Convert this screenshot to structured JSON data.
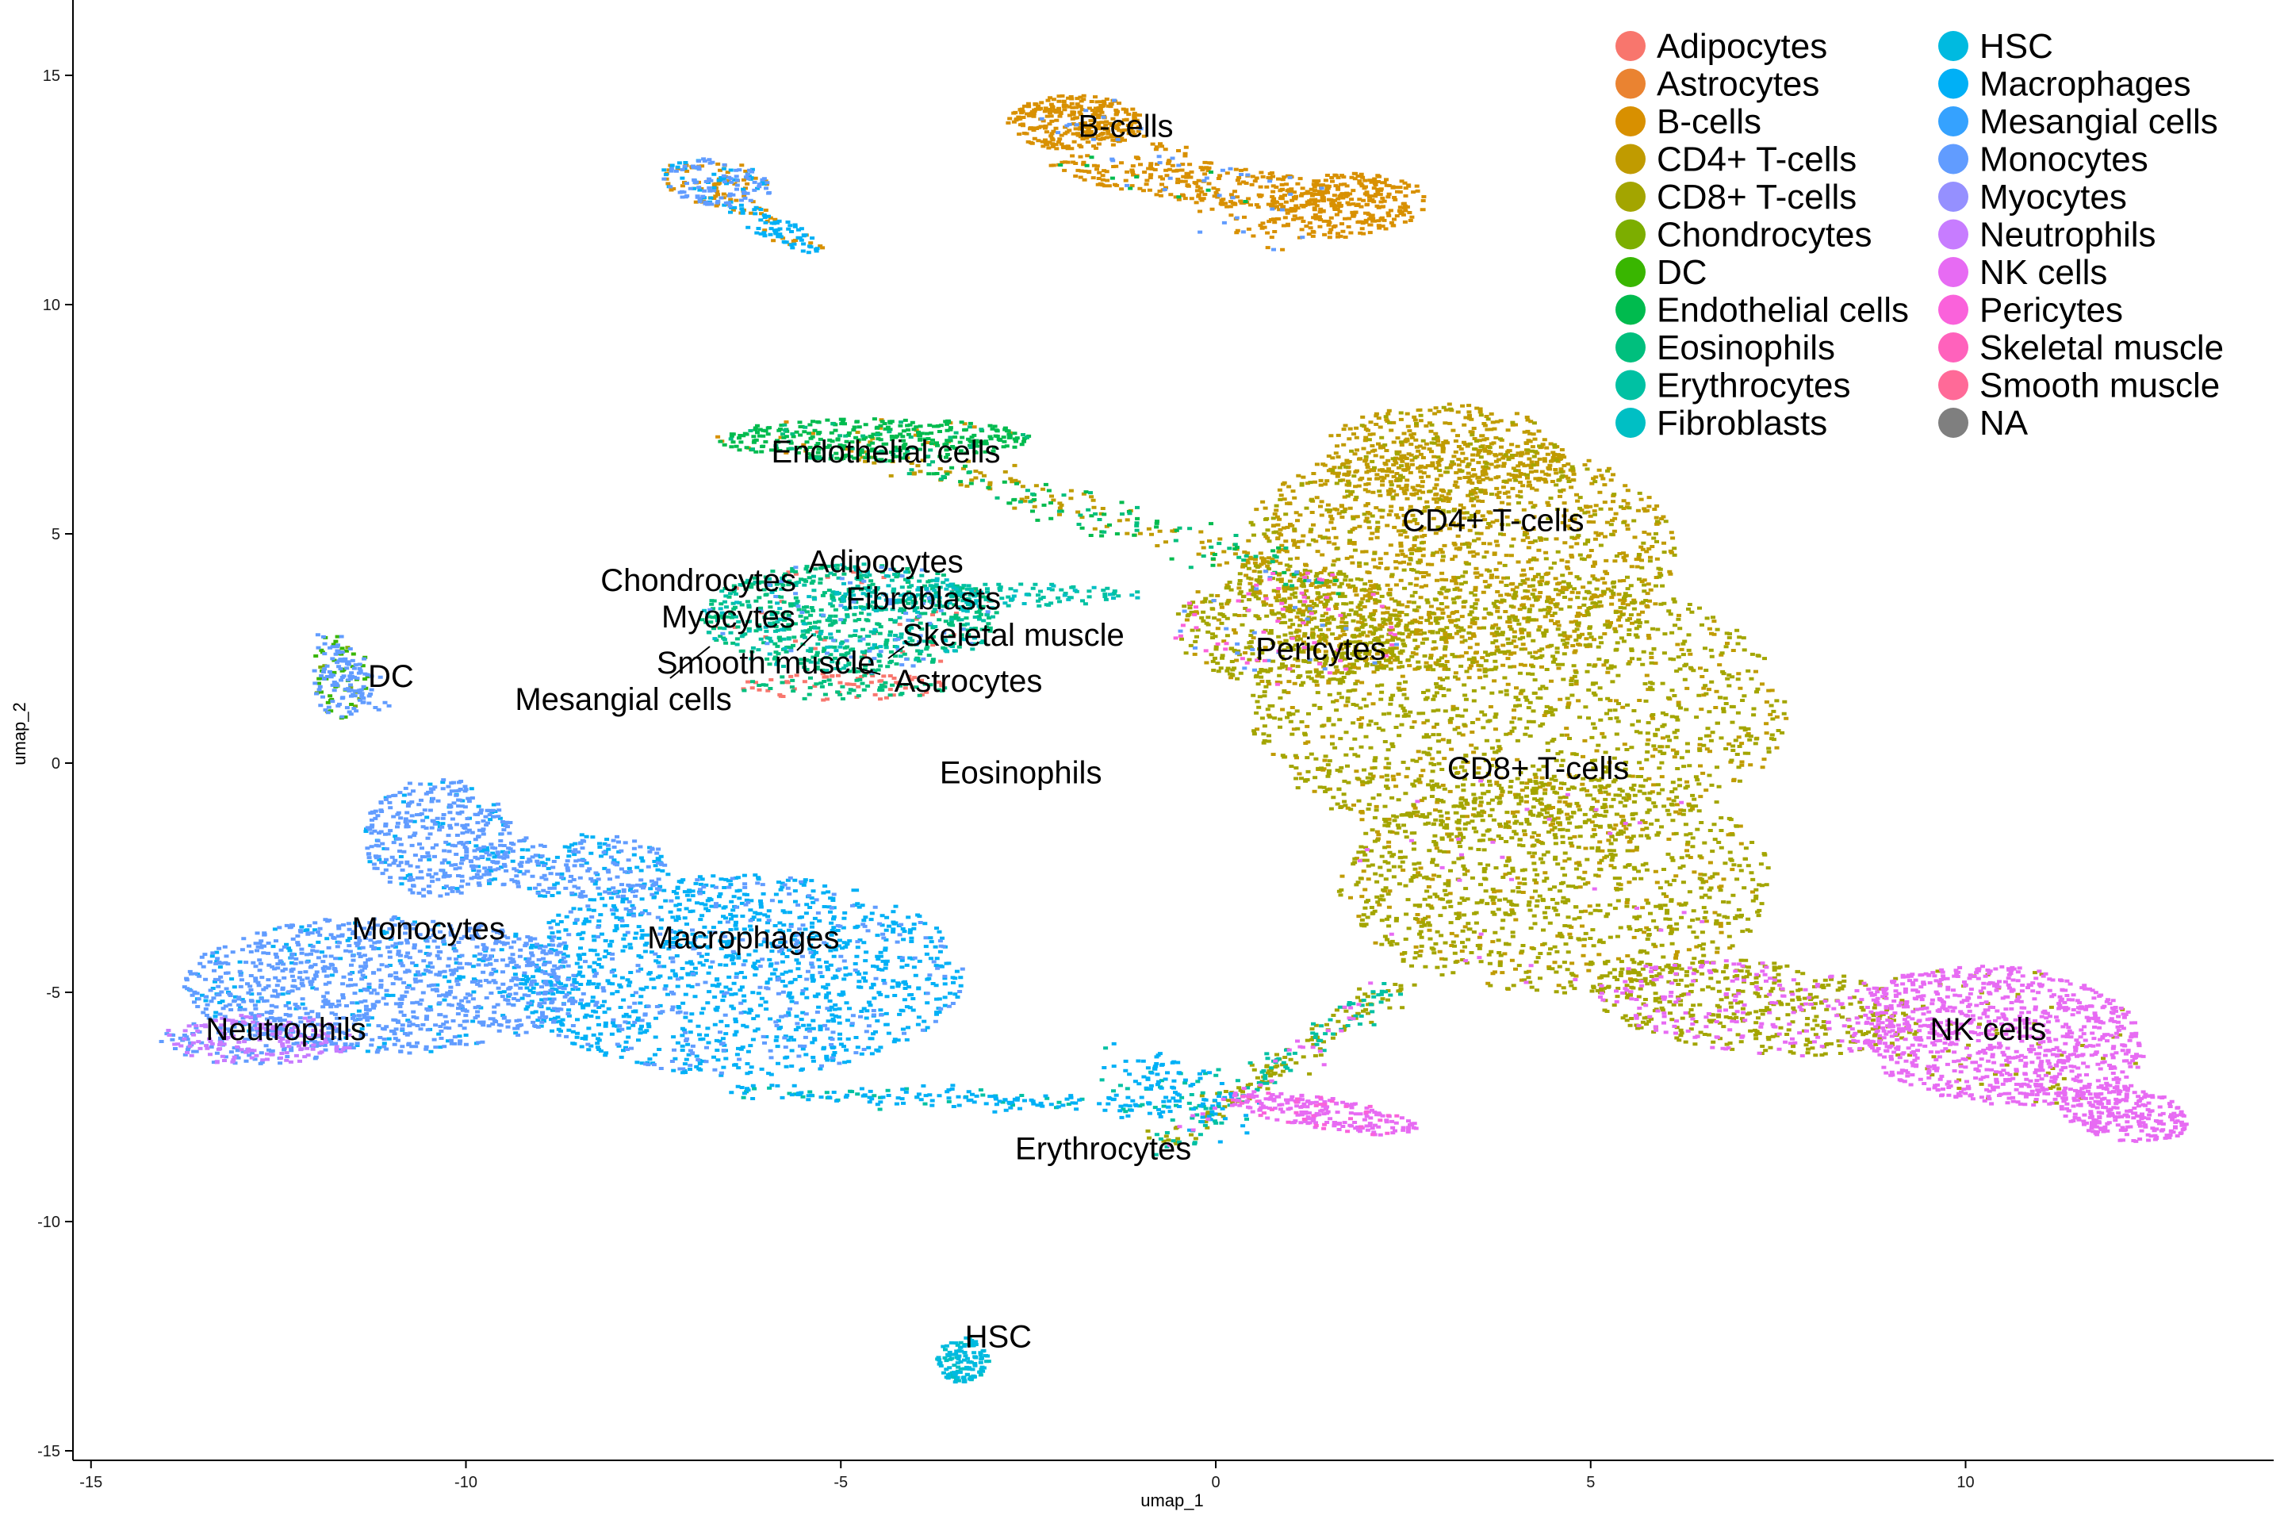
{
  "chart_data": {
    "type": "scatter",
    "xlabel": "umap_1",
    "ylabel": "umap_2",
    "xlim": [
      -15.2,
      14
    ],
    "ylim": [
      -15.2,
      16.3
    ],
    "x_ticks": [
      -15,
      -10,
      -5,
      0,
      5,
      10
    ],
    "y_ticks": [
      -15,
      -10,
      -5,
      0,
      5,
      10,
      15
    ],
    "grid": false,
    "legend_position": "top-right",
    "legend": [
      {
        "name": "Adipocytes",
        "color": "#F8766D"
      },
      {
        "name": "Astrocytes",
        "color": "#EA8331"
      },
      {
        "name": "B-cells",
        "color": "#D89000"
      },
      {
        "name": "CD4+ T-cells",
        "color": "#C09B00"
      },
      {
        "name": "CD8+ T-cells",
        "color": "#A3A500"
      },
      {
        "name": "Chondrocytes",
        "color": "#7CAE00"
      },
      {
        "name": "DC",
        "color": "#39B600"
      },
      {
        "name": "Endothelial cells",
        "color": "#00BB4E"
      },
      {
        "name": "Eosinophils",
        "color": "#00BF7D"
      },
      {
        "name": "Erythrocytes",
        "color": "#00C1A3"
      },
      {
        "name": "Fibroblasts",
        "color": "#00BFC4"
      },
      {
        "name": "HSC",
        "color": "#00BAE0"
      },
      {
        "name": "Macrophages",
        "color": "#00B0F6"
      },
      {
        "name": "Mesangial cells",
        "color": "#35A2FF"
      },
      {
        "name": "Monocytes",
        "color": "#619CFF"
      },
      {
        "name": "Myocytes",
        "color": "#9590FF"
      },
      {
        "name": "Neutrophils",
        "color": "#C77CFF"
      },
      {
        "name": "NK cells",
        "color": "#E76BF3"
      },
      {
        "name": "Pericytes",
        "color": "#FA62DB"
      },
      {
        "name": "Skeletal muscle",
        "color": "#FF62BC"
      },
      {
        "name": "Smooth muscle",
        "color": "#FF6A98"
      },
      {
        "name": "NA",
        "color": "#7F7F7F"
      }
    ],
    "cluster_labels": [
      {
        "text": "B-cells",
        "x": -1.2,
        "y": 13.9
      },
      {
        "text": "Endothelial cells",
        "x": -4.4,
        "y": 6.8
      },
      {
        "text": "CD4+ T-cells",
        "x": 3.7,
        "y": 5.3
      },
      {
        "text": "Adipocytes",
        "x": -4.4,
        "y": 4.4
      },
      {
        "text": "Chondrocytes",
        "x": -6.9,
        "y": 4.0
      },
      {
        "text": "Fibroblasts",
        "x": -3.9,
        "y": 3.6
      },
      {
        "text": "Myocytes",
        "x": -6.5,
        "y": 3.2
      },
      {
        "text": "Skeletal muscle",
        "x": -2.7,
        "y": 2.8
      },
      {
        "text": "Pericytes",
        "x": 1.4,
        "y": 2.5
      },
      {
        "text": "Smooth muscle",
        "x": -6.0,
        "y": 2.2
      },
      {
        "text": "DC",
        "x": -11.0,
        "y": 1.9
      },
      {
        "text": "Astrocytes",
        "x": -3.3,
        "y": 1.8
      },
      {
        "text": "Mesangial cells",
        "x": -7.9,
        "y": 1.4
      },
      {
        "text": "Eosinophils",
        "x": -2.6,
        "y": -0.2
      },
      {
        "text": "CD8+ T-cells",
        "x": 4.3,
        "y": -0.1
      },
      {
        "text": "Monocytes",
        "x": -10.5,
        "y": -3.6
      },
      {
        "text": "Macrophages",
        "x": -6.3,
        "y": -3.8
      },
      {
        "text": "Neutrophils",
        "x": -12.4,
        "y": -5.8
      },
      {
        "text": "NK cells",
        "x": 10.3,
        "y": -5.8
      },
      {
        "text": "Erythrocytes",
        "x": -1.5,
        "y": -8.4
      },
      {
        "text": "HSC",
        "x": -2.9,
        "y": -12.5
      }
    ]
  }
}
